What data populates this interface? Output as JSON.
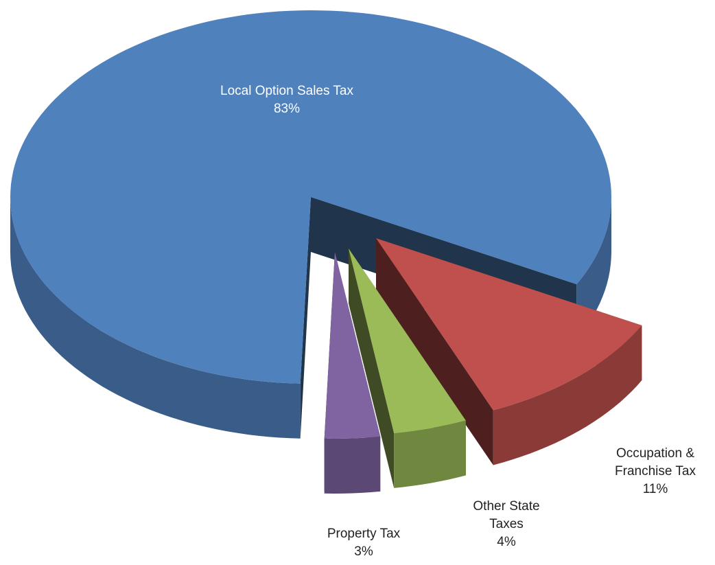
{
  "chart_data": {
    "type": "pie3d",
    "categories": [
      "Local Option Sales Tax",
      "Occupation & Franchise Tax",
      "Other State Taxes",
      "Property Tax"
    ],
    "values": [
      83,
      11,
      4,
      3
    ],
    "value_labels": [
      "83%",
      "11%",
      "4%",
      "3%"
    ],
    "colors": [
      "#4f81bd",
      "#c0504d",
      "#9bbb59",
      "#8064a2"
    ]
  }
}
